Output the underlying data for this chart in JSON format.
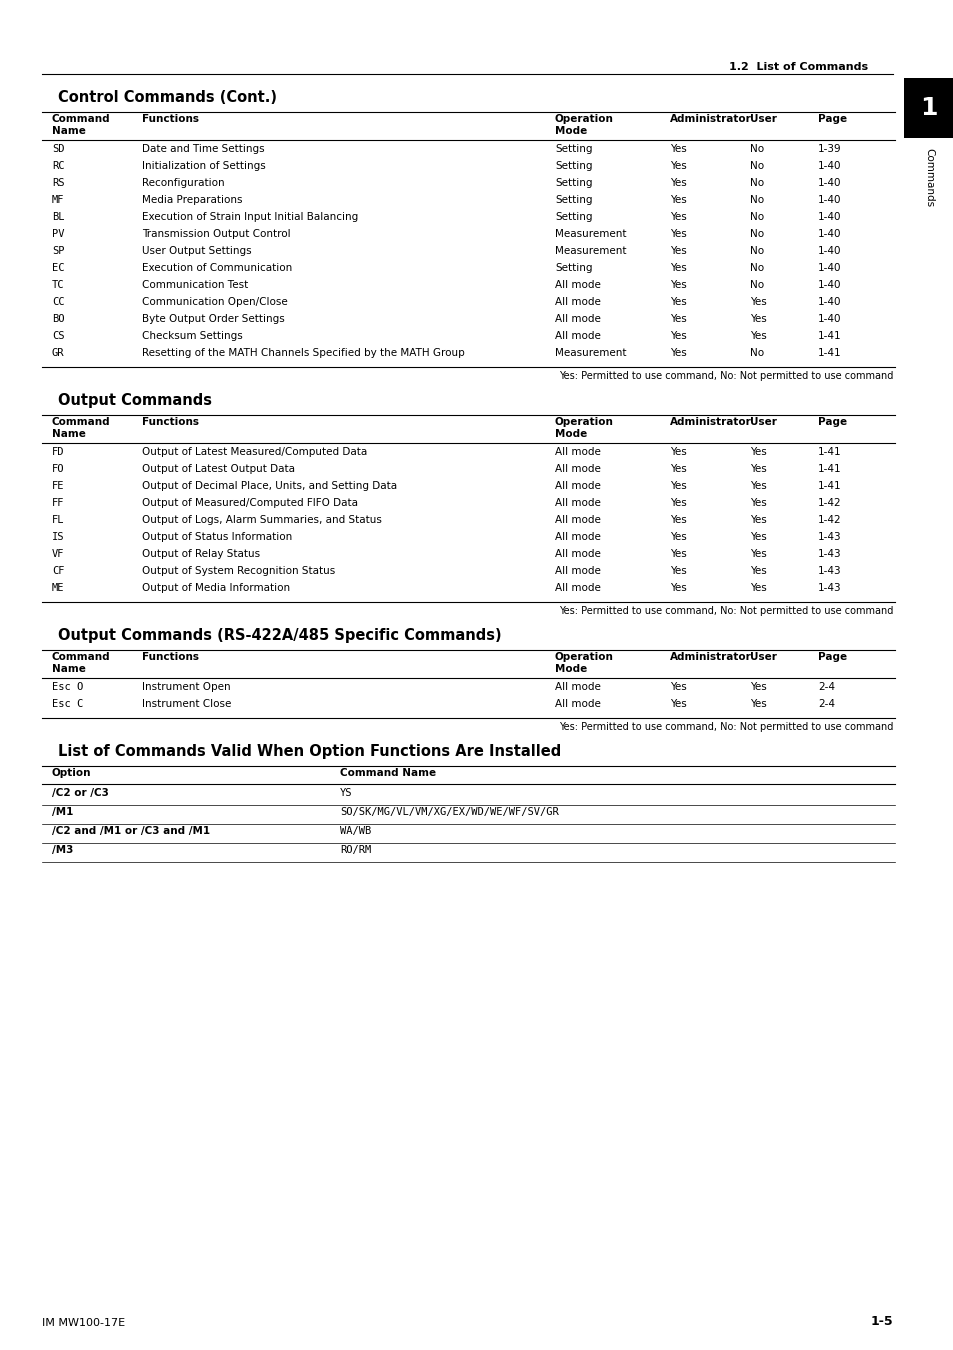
{
  "page_header": "1.2  List of Commands",
  "page_footer_left": "IM MW100-17E",
  "page_footer_right": "1-5",
  "tab_number": "1",
  "tab_label": "Commands",
  "section1_title": "Control Commands (Cont.)",
  "section1_rows": [
    [
      "SD",
      "Date and Time Settings",
      "Setting",
      "Yes",
      "No",
      "1-39"
    ],
    [
      "RC",
      "Initialization of Settings",
      "Setting",
      "Yes",
      "No",
      "1-40"
    ],
    [
      "RS",
      "Reconfiguration",
      "Setting",
      "Yes",
      "No",
      "1-40"
    ],
    [
      "MF",
      "Media Preparations",
      "Setting",
      "Yes",
      "No",
      "1-40"
    ],
    [
      "BL",
      "Execution of Strain Input Initial Balancing",
      "Setting",
      "Yes",
      "No",
      "1-40"
    ],
    [
      "PV",
      "Transmission Output Control",
      "Measurement",
      "Yes",
      "No",
      "1-40"
    ],
    [
      "SP",
      "User Output Settings",
      "Measurement",
      "Yes",
      "No",
      "1-40"
    ],
    [
      "EC",
      "Execution of Communication",
      "Setting",
      "Yes",
      "No",
      "1-40"
    ],
    [
      "TC",
      "Communication Test",
      "All mode",
      "Yes",
      "No",
      "1-40"
    ],
    [
      "CC",
      "Communication Open/Close",
      "All mode",
      "Yes",
      "Yes",
      "1-40"
    ],
    [
      "BO",
      "Byte Output Order Settings",
      "All mode",
      "Yes",
      "Yes",
      "1-40"
    ],
    [
      "CS",
      "Checksum Settings",
      "All mode",
      "Yes",
      "Yes",
      "1-41"
    ],
    [
      "GR",
      "Resetting of the MATH Channels Specified by the MATH Group",
      "Measurement",
      "Yes",
      "No",
      "1-41"
    ]
  ],
  "section1_note": "Yes: Permitted to use command, No: Not permitted to use command",
  "section2_title": "Output Commands",
  "section2_rows": [
    [
      "FD",
      "Output of Latest Measured/Computed Data",
      "All mode",
      "Yes",
      "Yes",
      "1-41"
    ],
    [
      "FO",
      "Output of Latest Output Data",
      "All mode",
      "Yes",
      "Yes",
      "1-41"
    ],
    [
      "FE",
      "Output of Decimal Place, Units, and Setting Data",
      "All mode",
      "Yes",
      "Yes",
      "1-41"
    ],
    [
      "FF",
      "Output of Measured/Computed FIFO Data",
      "All mode",
      "Yes",
      "Yes",
      "1-42"
    ],
    [
      "FL",
      "Output of Logs, Alarm Summaries, and Status",
      "All mode",
      "Yes",
      "Yes",
      "1-42"
    ],
    [
      "IS",
      "Output of Status Information",
      "All mode",
      "Yes",
      "Yes",
      "1-43"
    ],
    [
      "VF",
      "Output of Relay Status",
      "All mode",
      "Yes",
      "Yes",
      "1-43"
    ],
    [
      "CF",
      "Output of System Recognition Status",
      "All mode",
      "Yes",
      "Yes",
      "1-43"
    ],
    [
      "ME",
      "Output of Media Information",
      "All mode",
      "Yes",
      "Yes",
      "1-43"
    ]
  ],
  "section2_note": "Yes: Permitted to use command, No: Not permitted to use command",
  "section3_title": "Output Commands (RS-422A/485 Specific Commands)",
  "section3_rows": [
    [
      "Esc O",
      "Instrument Open",
      "All mode",
      "Yes",
      "Yes",
      "2-4"
    ],
    [
      "Esc C",
      "Instrument Close",
      "All mode",
      "Yes",
      "Yes",
      "2-4"
    ]
  ],
  "section3_note": "Yes: Permitted to use command, No: Not permitted to use command",
  "section4_title": "List of Commands Valid When Option Functions Are Installed",
  "section4_col_headers": [
    "Option",
    "Command Name"
  ],
  "section4_rows": [
    [
      "/C2 or /C3",
      "YS"
    ],
    [
      "/M1",
      "SO/SK/MG/VL/VM/XG/EX/WD/WE/WF/SV/GR"
    ],
    [
      "/C2 and /M1 or /C3 and /M1",
      "WA/WB"
    ],
    [
      "/M3",
      "RO/RM"
    ]
  ],
  "col_headers": [
    "Command\nName",
    "Functions",
    "Operation\nMode",
    "Administrator",
    "User",
    "Page"
  ],
  "bg_color": "#ffffff"
}
